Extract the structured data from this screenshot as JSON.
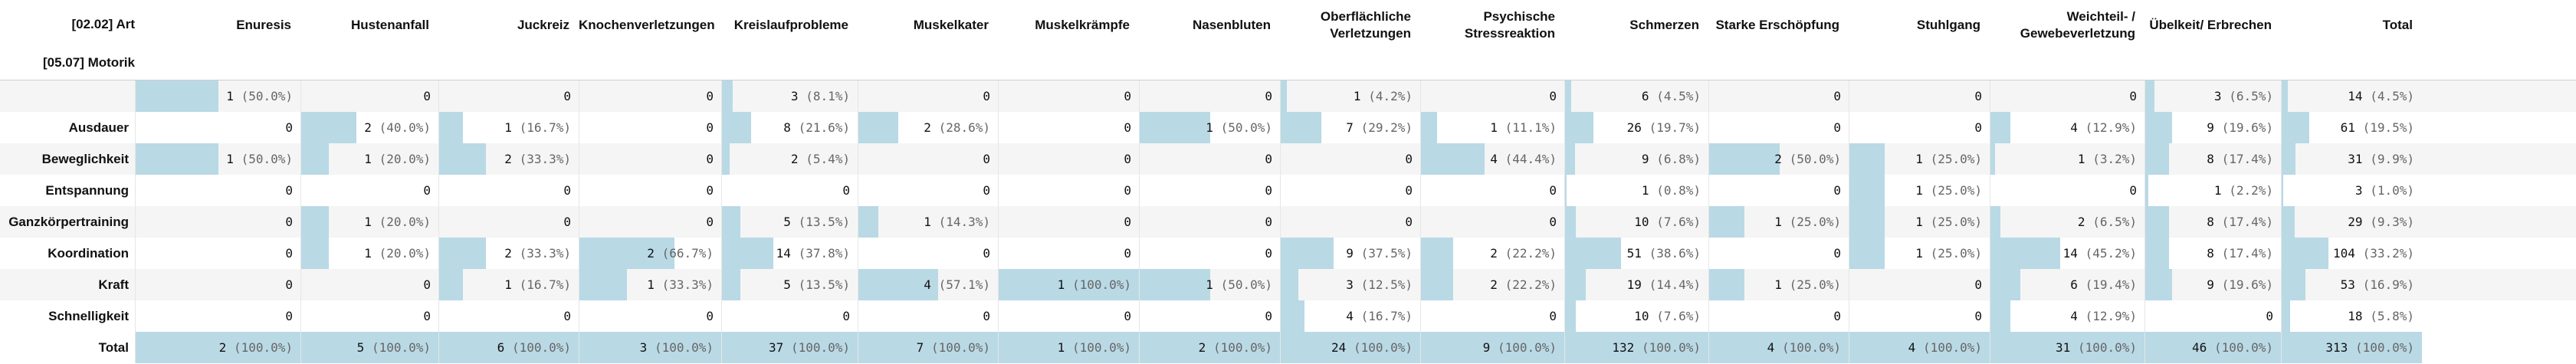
{
  "corner": {
    "top": "[02.02] Art",
    "bottom": "[05.07] Motorik"
  },
  "columns": [
    {
      "label": [
        "Enuresis"
      ]
    },
    {
      "label": [
        "Hustenanfall"
      ]
    },
    {
      "label": [
        "Juckreiz"
      ]
    },
    {
      "label": [
        "Knochenverletzungen"
      ]
    },
    {
      "label": [
        "Kreislaufprobleme"
      ]
    },
    {
      "label": [
        "Muskelkater"
      ]
    },
    {
      "label": [
        "Muskelkrämpfe"
      ]
    },
    {
      "label": [
        "Nasenbluten"
      ]
    },
    {
      "label": [
        "Oberflächliche",
        "Verletzungen"
      ]
    },
    {
      "label": [
        "Psychische",
        "Stressreaktion"
      ]
    },
    {
      "label": [
        "Schmerzen"
      ]
    },
    {
      "label": [
        "Starke Erschöpfung"
      ]
    },
    {
      "label": [
        "Stuhlgang"
      ]
    },
    {
      "label": [
        "Weichteil- /",
        "Gewebeverletzung"
      ]
    },
    {
      "label": [
        "Übelkeit/ Erbrechen"
      ]
    },
    {
      "label": [
        "Total"
      ]
    }
  ],
  "rows": [
    {
      "label": "",
      "cells": [
        {
          "n": "1",
          "p": "(50.0%)",
          "f": 0.5
        },
        {
          "n": "0",
          "p": "",
          "f": 0
        },
        {
          "n": "0",
          "p": "",
          "f": 0
        },
        {
          "n": "0",
          "p": "",
          "f": 0
        },
        {
          "n": "3",
          "p": "(8.1%)",
          "f": 0.081
        },
        {
          "n": "0",
          "p": "",
          "f": 0
        },
        {
          "n": "0",
          "p": "",
          "f": 0
        },
        {
          "n": "0",
          "p": "",
          "f": 0
        },
        {
          "n": "1",
          "p": "(4.2%)",
          "f": 0.042
        },
        {
          "n": "0",
          "p": "",
          "f": 0
        },
        {
          "n": "6",
          "p": "(4.5%)",
          "f": 0.045
        },
        {
          "n": "0",
          "p": "",
          "f": 0
        },
        {
          "n": "0",
          "p": "",
          "f": 0
        },
        {
          "n": "0",
          "p": "",
          "f": 0
        },
        {
          "n": "3",
          "p": "(6.5%)",
          "f": 0.065
        },
        {
          "n": "14",
          "p": "(4.5%)",
          "f": 0.045
        }
      ]
    },
    {
      "label": "Ausdauer",
      "cells": [
        {
          "n": "0",
          "p": "",
          "f": 0
        },
        {
          "n": "2",
          "p": "(40.0%)",
          "f": 0.4
        },
        {
          "n": "1",
          "p": "(16.7%)",
          "f": 0.167
        },
        {
          "n": "0",
          "p": "",
          "f": 0
        },
        {
          "n": "8",
          "p": "(21.6%)",
          "f": 0.216
        },
        {
          "n": "2",
          "p": "(28.6%)",
          "f": 0.286
        },
        {
          "n": "0",
          "p": "",
          "f": 0
        },
        {
          "n": "1",
          "p": "(50.0%)",
          "f": 0.5
        },
        {
          "n": "7",
          "p": "(29.2%)",
          "f": 0.292
        },
        {
          "n": "1",
          "p": "(11.1%)",
          "f": 0.111
        },
        {
          "n": "26",
          "p": "(19.7%)",
          "f": 0.197
        },
        {
          "n": "0",
          "p": "",
          "f": 0
        },
        {
          "n": "0",
          "p": "",
          "f": 0
        },
        {
          "n": "4",
          "p": "(12.9%)",
          "f": 0.129
        },
        {
          "n": "9",
          "p": "(19.6%)",
          "f": 0.196
        },
        {
          "n": "61",
          "p": "(19.5%)",
          "f": 0.195
        }
      ]
    },
    {
      "label": "Beweglichkeit",
      "cells": [
        {
          "n": "1",
          "p": "(50.0%)",
          "f": 0.5
        },
        {
          "n": "1",
          "p": "(20.0%)",
          "f": 0.2
        },
        {
          "n": "2",
          "p": "(33.3%)",
          "f": 0.333
        },
        {
          "n": "0",
          "p": "",
          "f": 0
        },
        {
          "n": "2",
          "p": "(5.4%)",
          "f": 0.054
        },
        {
          "n": "0",
          "p": "",
          "f": 0
        },
        {
          "n": "0",
          "p": "",
          "f": 0
        },
        {
          "n": "0",
          "p": "",
          "f": 0
        },
        {
          "n": "0",
          "p": "",
          "f": 0
        },
        {
          "n": "4",
          "p": "(44.4%)",
          "f": 0.444
        },
        {
          "n": "9",
          "p": "(6.8%)",
          "f": 0.068
        },
        {
          "n": "2",
          "p": "(50.0%)",
          "f": 0.5
        },
        {
          "n": "1",
          "p": "(25.0%)",
          "f": 0.25
        },
        {
          "n": "1",
          "p": "(3.2%)",
          "f": 0.032
        },
        {
          "n": "8",
          "p": "(17.4%)",
          "f": 0.174
        },
        {
          "n": "31",
          "p": "(9.9%)",
          "f": 0.099
        }
      ]
    },
    {
      "label": "Entspannung",
      "cells": [
        {
          "n": "0",
          "p": "",
          "f": 0
        },
        {
          "n": "0",
          "p": "",
          "f": 0
        },
        {
          "n": "0",
          "p": "",
          "f": 0
        },
        {
          "n": "0",
          "p": "",
          "f": 0
        },
        {
          "n": "0",
          "p": "",
          "f": 0
        },
        {
          "n": "0",
          "p": "",
          "f": 0
        },
        {
          "n": "0",
          "p": "",
          "f": 0
        },
        {
          "n": "0",
          "p": "",
          "f": 0
        },
        {
          "n": "0",
          "p": "",
          "f": 0
        },
        {
          "n": "0",
          "p": "",
          "f": 0
        },
        {
          "n": "1",
          "p": "(0.8%)",
          "f": 0.008
        },
        {
          "n": "0",
          "p": "",
          "f": 0
        },
        {
          "n": "1",
          "p": "(25.0%)",
          "f": 0.25
        },
        {
          "n": "0",
          "p": "",
          "f": 0
        },
        {
          "n": "1",
          "p": "(2.2%)",
          "f": 0.022
        },
        {
          "n": "3",
          "p": "(1.0%)",
          "f": 0.01
        }
      ]
    },
    {
      "label": "Ganzkörpertraining",
      "cells": [
        {
          "n": "0",
          "p": "",
          "f": 0
        },
        {
          "n": "1",
          "p": "(20.0%)",
          "f": 0.2
        },
        {
          "n": "0",
          "p": "",
          "f": 0
        },
        {
          "n": "0",
          "p": "",
          "f": 0
        },
        {
          "n": "5",
          "p": "(13.5%)",
          "f": 0.135
        },
        {
          "n": "1",
          "p": "(14.3%)",
          "f": 0.143
        },
        {
          "n": "0",
          "p": "",
          "f": 0
        },
        {
          "n": "0",
          "p": "",
          "f": 0
        },
        {
          "n": "0",
          "p": "",
          "f": 0
        },
        {
          "n": "0",
          "p": "",
          "f": 0
        },
        {
          "n": "10",
          "p": "(7.6%)",
          "f": 0.076
        },
        {
          "n": "1",
          "p": "(25.0%)",
          "f": 0.25
        },
        {
          "n": "1",
          "p": "(25.0%)",
          "f": 0.25
        },
        {
          "n": "2",
          "p": "(6.5%)",
          "f": 0.065
        },
        {
          "n": "8",
          "p": "(17.4%)",
          "f": 0.174
        },
        {
          "n": "29",
          "p": "(9.3%)",
          "f": 0.093
        }
      ]
    },
    {
      "label": "Koordination",
      "cells": [
        {
          "n": "0",
          "p": "",
          "f": 0
        },
        {
          "n": "1",
          "p": "(20.0%)",
          "f": 0.2
        },
        {
          "n": "2",
          "p": "(33.3%)",
          "f": 0.333
        },
        {
          "n": "2",
          "p": "(66.7%)",
          "f": 0.667
        },
        {
          "n": "14",
          "p": "(37.8%)",
          "f": 0.378
        },
        {
          "n": "0",
          "p": "",
          "f": 0
        },
        {
          "n": "0",
          "p": "",
          "f": 0
        },
        {
          "n": "0",
          "p": "",
          "f": 0
        },
        {
          "n": "9",
          "p": "(37.5%)",
          "f": 0.375
        },
        {
          "n": "2",
          "p": "(22.2%)",
          "f": 0.222
        },
        {
          "n": "51",
          "p": "(38.6%)",
          "f": 0.386
        },
        {
          "n": "0",
          "p": "",
          "f": 0
        },
        {
          "n": "1",
          "p": "(25.0%)",
          "f": 0.25
        },
        {
          "n": "14",
          "p": "(45.2%)",
          "f": 0.452
        },
        {
          "n": "8",
          "p": "(17.4%)",
          "f": 0.174
        },
        {
          "n": "104",
          "p": "(33.2%)",
          "f": 0.332
        }
      ]
    },
    {
      "label": "Kraft",
      "cells": [
        {
          "n": "0",
          "p": "",
          "f": 0
        },
        {
          "n": "0",
          "p": "",
          "f": 0
        },
        {
          "n": "1",
          "p": "(16.7%)",
          "f": 0.167
        },
        {
          "n": "1",
          "p": "(33.3%)",
          "f": 0.333
        },
        {
          "n": "5",
          "p": "(13.5%)",
          "f": 0.135
        },
        {
          "n": "4",
          "p": "(57.1%)",
          "f": 0.571
        },
        {
          "n": "1",
          "p": "(100.0%)",
          "f": 1
        },
        {
          "n": "1",
          "p": "(50.0%)",
          "f": 0.5
        },
        {
          "n": "3",
          "p": "(12.5%)",
          "f": 0.125
        },
        {
          "n": "2",
          "p": "(22.2%)",
          "f": 0.222
        },
        {
          "n": "19",
          "p": "(14.4%)",
          "f": 0.144
        },
        {
          "n": "1",
          "p": "(25.0%)",
          "f": 0.25
        },
        {
          "n": "0",
          "p": "",
          "f": 0
        },
        {
          "n": "6",
          "p": "(19.4%)",
          "f": 0.194
        },
        {
          "n": "9",
          "p": "(19.6%)",
          "f": 0.196
        },
        {
          "n": "53",
          "p": "(16.9%)",
          "f": 0.169
        }
      ]
    },
    {
      "label": "Schnelligkeit",
      "cells": [
        {
          "n": "0",
          "p": "",
          "f": 0
        },
        {
          "n": "0",
          "p": "",
          "f": 0
        },
        {
          "n": "0",
          "p": "",
          "f": 0
        },
        {
          "n": "0",
          "p": "",
          "f": 0
        },
        {
          "n": "0",
          "p": "",
          "f": 0
        },
        {
          "n": "0",
          "p": "",
          "f": 0
        },
        {
          "n": "0",
          "p": "",
          "f": 0
        },
        {
          "n": "0",
          "p": "",
          "f": 0
        },
        {
          "n": "4",
          "p": "(16.7%)",
          "f": 0.167
        },
        {
          "n": "0",
          "p": "",
          "f": 0
        },
        {
          "n": "10",
          "p": "(7.6%)",
          "f": 0.076
        },
        {
          "n": "0",
          "p": "",
          "f": 0
        },
        {
          "n": "0",
          "p": "",
          "f": 0
        },
        {
          "n": "4",
          "p": "(12.9%)",
          "f": 0.129
        },
        {
          "n": "0",
          "p": "",
          "f": 0
        },
        {
          "n": "18",
          "p": "(5.8%)",
          "f": 0.058
        }
      ]
    },
    {
      "label": "Total",
      "total": true,
      "cells": [
        {
          "n": "2",
          "p": "(100.0%)",
          "f": 1
        },
        {
          "n": "5",
          "p": "(100.0%)",
          "f": 1
        },
        {
          "n": "6",
          "p": "(100.0%)",
          "f": 1
        },
        {
          "n": "3",
          "p": "(100.0%)",
          "f": 1
        },
        {
          "n": "37",
          "p": "(100.0%)",
          "f": 1
        },
        {
          "n": "7",
          "p": "(100.0%)",
          "f": 1
        },
        {
          "n": "1",
          "p": "(100.0%)",
          "f": 1
        },
        {
          "n": "2",
          "p": "(100.0%)",
          "f": 1
        },
        {
          "n": "24",
          "p": "(100.0%)",
          "f": 1
        },
        {
          "n": "9",
          "p": "(100.0%)",
          "f": 1
        },
        {
          "n": "132",
          "p": "(100.0%)",
          "f": 1
        },
        {
          "n": "4",
          "p": "(100.0%)",
          "f": 1
        },
        {
          "n": "4",
          "p": "(100.0%)",
          "f": 1
        },
        {
          "n": "31",
          "p": "(100.0%)",
          "f": 1
        },
        {
          "n": "46",
          "p": "(100.0%)",
          "f": 1
        },
        {
          "n": "313",
          "p": "(100.0%)",
          "f": 1
        }
      ]
    }
  ],
  "colors": {
    "bar": "#b9d9e5",
    "row_shade": "#f5f5f5"
  }
}
